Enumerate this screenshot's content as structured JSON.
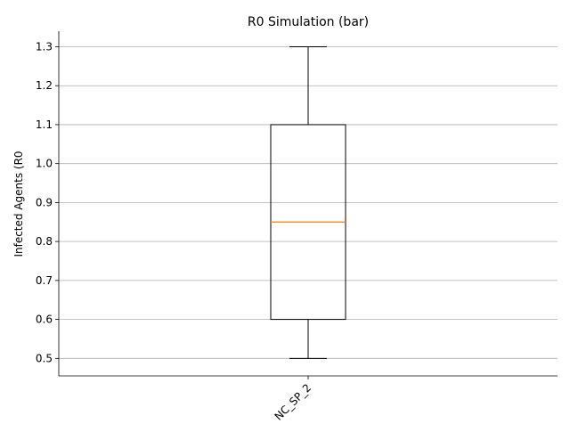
{
  "chart_data": {
    "type": "box",
    "title": "R0 Simulation (bar)",
    "xlabel": "",
    "ylabel": "Infected Agents (R0",
    "categories": [
      "NC_SP_2"
    ],
    "boxes": [
      {
        "category": "NC_SP_2",
        "whisker_low": 0.5,
        "q1": 0.6,
        "median": 0.85,
        "q3": 1.1,
        "whisker_high": 1.3
      }
    ],
    "ylim": [
      0.455,
      1.34
    ],
    "yticks": [
      0.5,
      0.6,
      0.7,
      0.8,
      0.9,
      1.0,
      1.1,
      1.2,
      1.3
    ],
    "ytick_labels": [
      "0.5",
      "0.6",
      "0.7",
      "0.8",
      "0.9",
      "1.0",
      "1.1",
      "1.2",
      "1.3"
    ],
    "grid": "y",
    "colors": {
      "box": "#000000",
      "median": "#ff7f0e",
      "grid": "#b0b0b0",
      "axis": "#000000"
    }
  }
}
